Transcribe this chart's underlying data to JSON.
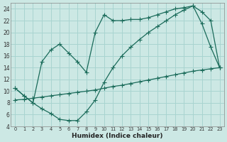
{
  "xlabel": "Humidex (Indice chaleur)",
  "bg_color": "#cce8e4",
  "grid_color": "#a8d4d0",
  "line_color": "#1a6b5a",
  "xlim": [
    -0.5,
    23.5
  ],
  "ylim": [
    4,
    25
  ],
  "xticks": [
    0,
    1,
    2,
    3,
    4,
    5,
    6,
    7,
    8,
    9,
    10,
    11,
    12,
    13,
    14,
    15,
    16,
    17,
    18,
    19,
    20,
    21,
    22,
    23
  ],
  "yticks": [
    4,
    6,
    8,
    10,
    12,
    14,
    16,
    18,
    20,
    22,
    24
  ],
  "line1_x": [
    0,
    1,
    2,
    3,
    4,
    5,
    6,
    7,
    8,
    9,
    10,
    11,
    12,
    13,
    14,
    15,
    16,
    17,
    18,
    19,
    20,
    21,
    22,
    23
  ],
  "line1_y": [
    10.5,
    9.2,
    8.0,
    15.0,
    17.0,
    18.0,
    16.5,
    15.0,
    13.2,
    20.0,
    23.0,
    22.0,
    22.0,
    22.2,
    22.2,
    22.5,
    23.0,
    23.5,
    24.0,
    24.2,
    24.5,
    21.5,
    17.5,
    14.0
  ],
  "line2_x": [
    0,
    1,
    2,
    3,
    4,
    5,
    6,
    7,
    8,
    9,
    10,
    11,
    12,
    13,
    14,
    15,
    16,
    17,
    18,
    19,
    20,
    21,
    22,
    23
  ],
  "line2_y": [
    8.5,
    8.6,
    8.8,
    9.0,
    9.2,
    9.4,
    9.6,
    9.8,
    10.0,
    10.2,
    10.5,
    10.8,
    11.0,
    11.3,
    11.6,
    11.9,
    12.2,
    12.5,
    12.8,
    13.1,
    13.4,
    13.6,
    13.8,
    14.0
  ],
  "line3_x": [
    0,
    1,
    2,
    3,
    4,
    5,
    6,
    7,
    8,
    9,
    10,
    11,
    12,
    13,
    14,
    15,
    16,
    17,
    18,
    19,
    20,
    21,
    22,
    23
  ],
  "line3_y": [
    10.5,
    9.2,
    8.0,
    7.0,
    6.2,
    5.2,
    5.0,
    5.0,
    6.5,
    8.5,
    11.5,
    14.0,
    16.0,
    17.5,
    18.8,
    20.0,
    21.0,
    22.0,
    23.0,
    23.8,
    24.5,
    23.5,
    22.0,
    14.0
  ]
}
